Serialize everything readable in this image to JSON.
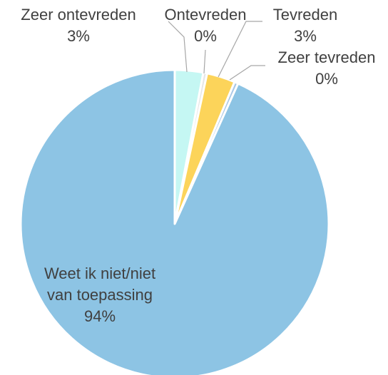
{
  "chart_data": {
    "type": "pie",
    "categories": [
      "Zeer ontevreden",
      "Ontevreden",
      "Tevreden",
      "Zeer tevreden",
      "Weet ik niet/niet van toepassing"
    ],
    "label_lines": [
      [
        "Zeer ontevreden"
      ],
      [
        "Ontevreden"
      ],
      [
        "Tevreden"
      ],
      [
        "Zeer tevreden"
      ],
      [
        "Weet ik niet/niet",
        "van toepassing"
      ]
    ],
    "values": [
      3,
      0.4,
      3,
      0.4,
      94
    ],
    "value_labels": [
      "3%",
      "0%",
      "3%",
      "0%",
      "94%"
    ],
    "colors": [
      "#c5f7f3",
      "#e6e6e6",
      "#fcd45a",
      "#a9c7e6",
      "#8dc4e4"
    ],
    "start_angle_deg": 0,
    "direction": "clockwise",
    "legend": "none",
    "data_labels": "outside-with-leader-lines"
  }
}
